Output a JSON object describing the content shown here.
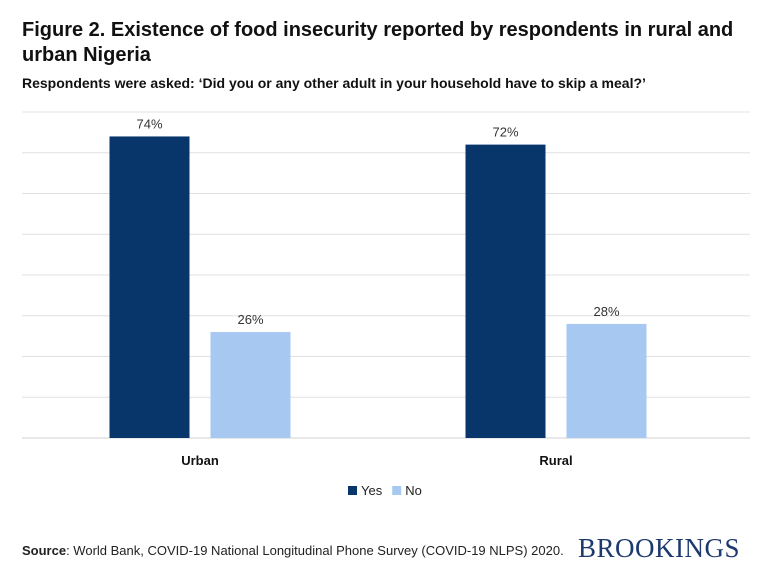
{
  "chart_data": {
    "type": "bar",
    "title": "Figure 2. Existence of food insecurity reported by respondents in rural and urban Nigeria",
    "subtitle": "Respondents were asked: ‘Did you or any other adult in your household have to skip a meal?’",
    "categories": [
      "Urban",
      "Rural"
    ],
    "series": [
      {
        "name": "Yes",
        "values": [
          74,
          72
        ],
        "labels": [
          "74%",
          "72%"
        ],
        "color": "#08366a"
      },
      {
        "name": "No",
        "values": [
          26,
          28
        ],
        "labels": [
          "26%",
          "28%"
        ],
        "color": "#a7c8f0"
      }
    ],
    "ylim": [
      0,
      80
    ],
    "grid_step": 10,
    "grid": true,
    "y_tick_labels": false,
    "legend": "bottom"
  },
  "source": {
    "label": "Source",
    "text": ": World Bank, COVID-19 National Longitudinal Phone Survey (COVID-19 NLPS) 2020."
  },
  "logo": "BROOKINGS"
}
